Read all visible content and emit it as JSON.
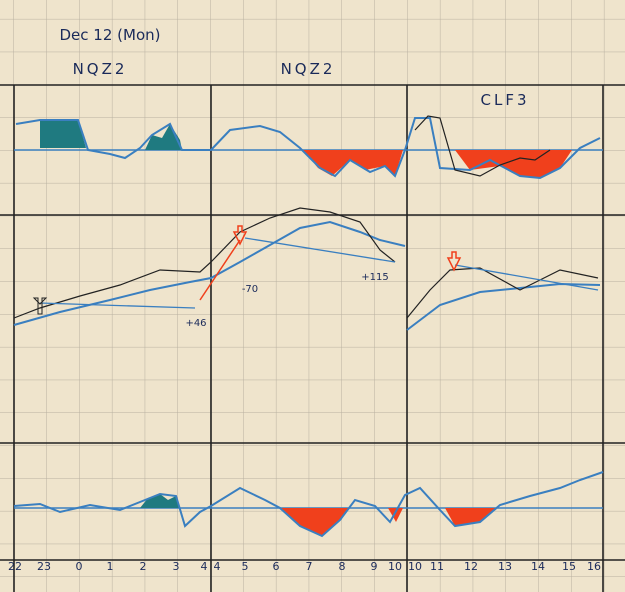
{
  "header": {
    "date": "Dec 12 (Mon)"
  },
  "panels": [
    {
      "title": "NQZ2"
    },
    {
      "title": "NQZ2"
    },
    {
      "title": "CLF3"
    }
  ],
  "annotations": [
    "+46",
    "-70",
    "+115"
  ],
  "x_labels": [
    "22",
    "23",
    "0",
    "1",
    "2",
    "3",
    "4",
    "4",
    "5",
    "6",
    "7",
    "8",
    "9",
    "10",
    "10",
    "11",
    "12",
    "13",
    "14",
    "15",
    "16"
  ]
}
